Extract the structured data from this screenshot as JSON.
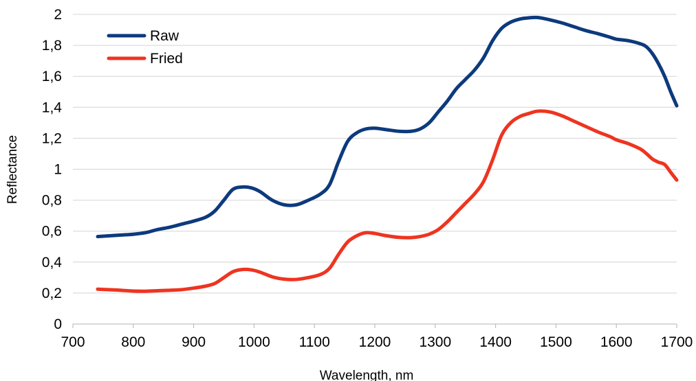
{
  "chart_data": {
    "type": "line",
    "title": "",
    "xlabel": "Wavelength, nm",
    "ylabel": "Reflectance",
    "xlim": [
      700,
      1700
    ],
    "ylim": [
      0,
      2
    ],
    "x_ticks": [
      700,
      800,
      900,
      1000,
      1100,
      1200,
      1300,
      1400,
      1500,
      1600,
      1700
    ],
    "y_ticks": [
      0,
      0.2,
      0.4,
      0.6,
      0.8,
      1,
      1.2,
      1.4,
      1.6,
      1.8,
      2
    ],
    "x_tick_labels": [
      "700",
      "800",
      "900",
      "1000",
      "1100",
      "1200",
      "1300",
      "1400",
      "1500",
      "1600",
      "1700"
    ],
    "y_tick_labels": [
      "0",
      "0,2",
      "0,4",
      "0,6",
      "0,8",
      "1",
      "1,2",
      "1,4",
      "1,6",
      "1,8",
      "2"
    ],
    "grid": "horizontal",
    "legend_position": "top-left",
    "series": [
      {
        "name": "Raw",
        "color": "#0d3a7d",
        "x": [
          741,
          760,
          780,
          800,
          820,
          840,
          860,
          880,
          900,
          920,
          935,
          950,
          965,
          980,
          995,
          1010,
          1030,
          1050,
          1070,
          1090,
          1110,
          1125,
          1140,
          1155,
          1170,
          1185,
          1200,
          1220,
          1240,
          1260,
          1275,
          1290,
          1305,
          1320,
          1335,
          1350,
          1365,
          1380,
          1395,
          1410,
          1425,
          1440,
          1455,
          1470,
          1490,
          1510,
          1530,
          1550,
          1570,
          1590,
          1600,
          1620,
          1640,
          1650,
          1660,
          1670,
          1680,
          1690,
          1700
        ],
        "values": [
          0.565,
          0.57,
          0.575,
          0.58,
          0.59,
          0.61,
          0.625,
          0.645,
          0.665,
          0.69,
          0.73,
          0.8,
          0.87,
          0.885,
          0.88,
          0.855,
          0.8,
          0.77,
          0.77,
          0.8,
          0.84,
          0.9,
          1.05,
          1.18,
          1.235,
          1.26,
          1.265,
          1.255,
          1.245,
          1.245,
          1.26,
          1.3,
          1.37,
          1.44,
          1.52,
          1.58,
          1.64,
          1.72,
          1.83,
          1.91,
          1.95,
          1.97,
          1.978,
          1.98,
          1.965,
          1.945,
          1.92,
          1.895,
          1.875,
          1.852,
          1.84,
          1.83,
          1.81,
          1.79,
          1.745,
          1.68,
          1.6,
          1.5,
          1.41
        ]
      },
      {
        "name": "Fried",
        "color": "#ee3420",
        "x": [
          741,
          760,
          780,
          800,
          820,
          840,
          860,
          880,
          900,
          920,
          935,
          950,
          965,
          980,
          995,
          1010,
          1030,
          1050,
          1070,
          1090,
          1110,
          1125,
          1140,
          1155,
          1170,
          1185,
          1200,
          1220,
          1240,
          1260,
          1275,
          1290,
          1305,
          1320,
          1335,
          1350,
          1365,
          1380,
          1395,
          1410,
          1425,
          1440,
          1455,
          1470,
          1490,
          1510,
          1530,
          1550,
          1570,
          1590,
          1600,
          1620,
          1640,
          1650,
          1660,
          1670,
          1680,
          1690,
          1700
        ],
        "values": [
          0.225,
          0.222,
          0.218,
          0.213,
          0.212,
          0.215,
          0.218,
          0.222,
          0.232,
          0.245,
          0.262,
          0.3,
          0.338,
          0.352,
          0.35,
          0.335,
          0.305,
          0.29,
          0.288,
          0.3,
          0.32,
          0.36,
          0.45,
          0.53,
          0.57,
          0.59,
          0.585,
          0.57,
          0.56,
          0.558,
          0.565,
          0.58,
          0.61,
          0.66,
          0.72,
          0.78,
          0.84,
          0.92,
          1.06,
          1.22,
          1.3,
          1.34,
          1.36,
          1.375,
          1.37,
          1.345,
          1.31,
          1.275,
          1.24,
          1.21,
          1.19,
          1.165,
          1.13,
          1.1,
          1.065,
          1.045,
          1.03,
          0.98,
          0.93
        ]
      }
    ]
  }
}
